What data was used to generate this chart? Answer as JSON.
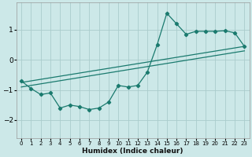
{
  "xlabel": "Humidex (Indice chaleur)",
  "ylabel": "",
  "bg_color": "#cce8e8",
  "grid_color": "#aacccc",
  "line_color": "#1a7a6e",
  "xlim": [
    -0.5,
    23.5
  ],
  "ylim": [
    -2.6,
    1.9
  ],
  "yticks": [
    -2,
    -1,
    0,
    1
  ],
  "xticks": [
    0,
    1,
    2,
    3,
    4,
    5,
    6,
    7,
    8,
    9,
    10,
    11,
    12,
    13,
    14,
    15,
    16,
    17,
    18,
    19,
    20,
    21,
    22,
    23
  ],
  "line1_x": [
    0,
    1,
    2,
    3,
    4,
    5,
    6,
    7,
    8,
    9,
    10,
    11,
    12,
    13,
    14,
    15,
    16,
    17,
    18,
    19,
    20,
    21,
    22,
    23
  ],
  "line1_y": [
    -0.7,
    -0.95,
    -1.15,
    -1.1,
    -1.6,
    -1.5,
    -1.55,
    -1.65,
    -1.6,
    -1.4,
    -0.85,
    -0.9,
    -0.85,
    -0.4,
    0.5,
    1.55,
    1.2,
    0.85,
    0.95,
    0.95,
    0.95,
    0.97,
    0.9,
    0.45
  ],
  "trend1_x": [
    0,
    23
  ],
  "trend1_y": [
    -0.75,
    0.45
  ],
  "trend2_x": [
    0,
    23
  ],
  "trend2_y": [
    -0.9,
    0.3
  ]
}
